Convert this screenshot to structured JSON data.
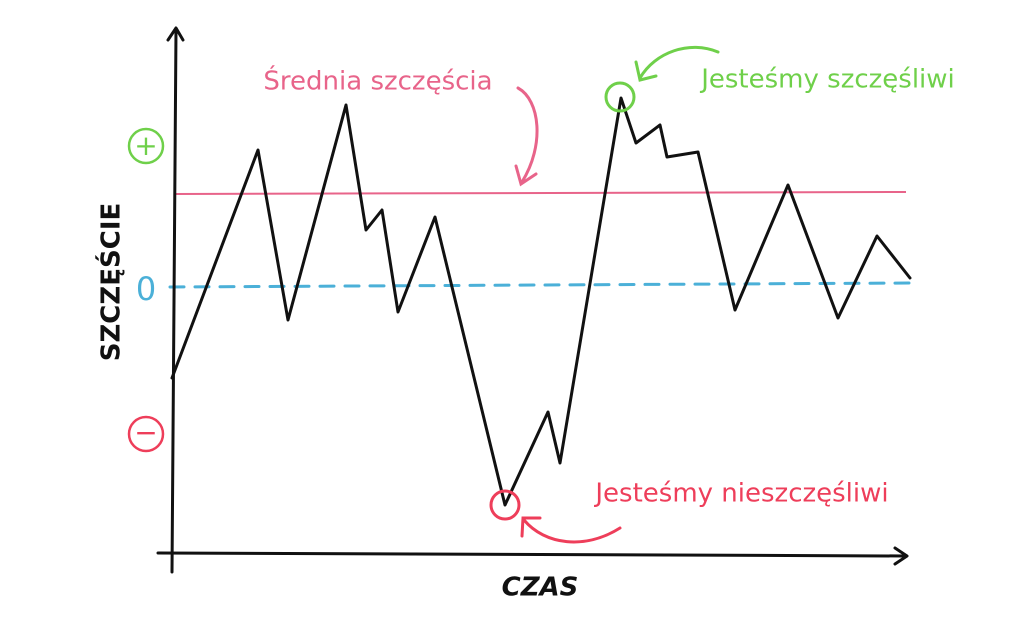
{
  "axes": {
    "y_label": "SZCZĘŚCIE",
    "x_label": "CZAS",
    "plus": "+",
    "zero": "0",
    "minus": "−"
  },
  "annotations": {
    "average": "Średnia szczęścia",
    "happy": "Jesteśmy szczęśliwi",
    "unhappy": "Jesteśmy nieszczęśliwi"
  }
}
